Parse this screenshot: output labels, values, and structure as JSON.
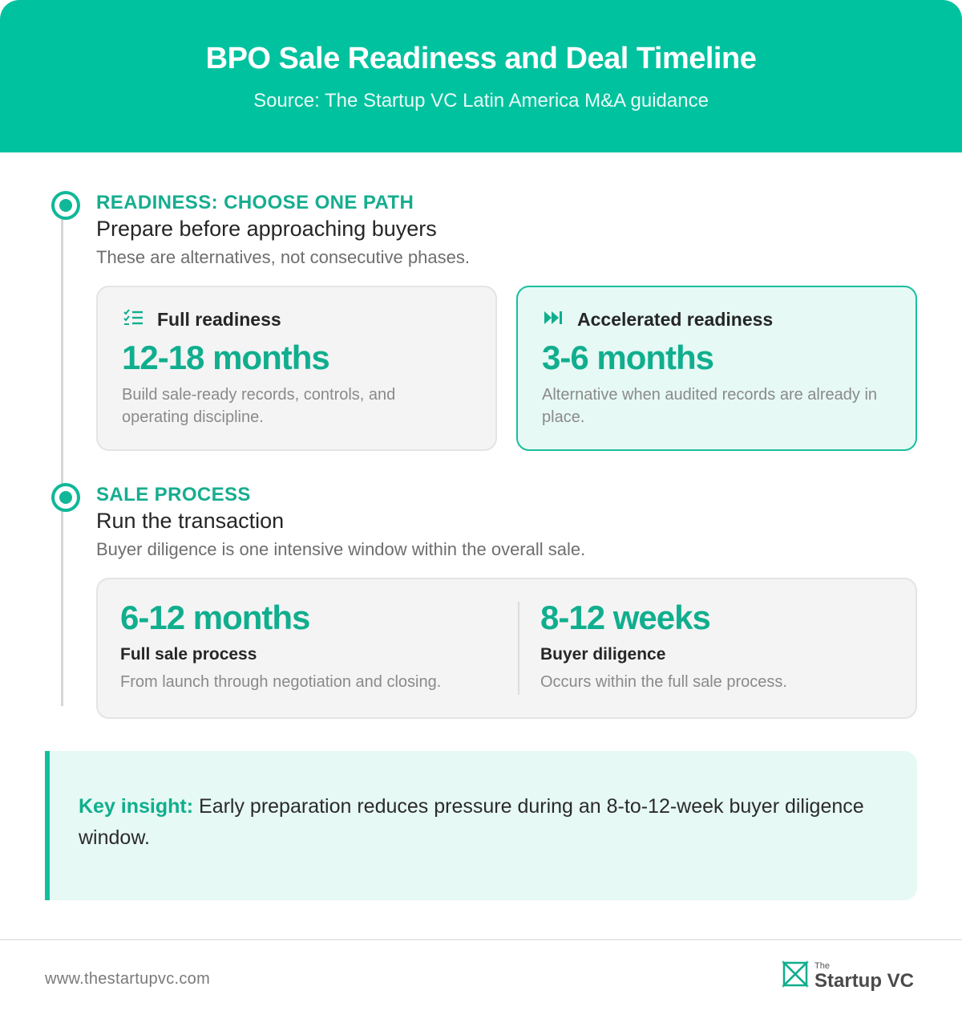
{
  "header": {
    "title": "BPO Sale Readiness and Deal Timeline",
    "source": "Source: The Startup VC Latin America M&A guidance"
  },
  "readiness": {
    "label": "READINESS: CHOOSE ONE PATH",
    "title": "Prepare before approaching buyers",
    "description": "These are alternatives, not consecutive phases.",
    "cards": [
      {
        "icon": "checklist-icon",
        "name": "Full readiness",
        "duration": "12-18 months",
        "description": "Build sale-ready records, controls, and operating discipline."
      },
      {
        "icon": "fast-forward-icon",
        "name": "Accelerated readiness",
        "duration": "3-6 months",
        "description": "Alternative when audited records are already in place."
      }
    ]
  },
  "sale_process": {
    "label": "SALE PROCESS",
    "title": "Run the transaction",
    "description": "Buyer diligence is one intensive window within the overall sale.",
    "items": [
      {
        "duration": "6-12 months",
        "name": "Full sale process",
        "description": "From launch through negotiation and closing."
      },
      {
        "duration": "8-12 weeks",
        "name": "Buyer diligence",
        "description": "Occurs within the full sale process."
      }
    ]
  },
  "insight": {
    "key": "Key insight:",
    "text": " Early preparation reduces pressure during an 8-to-12-week buyer diligence window."
  },
  "footer": {
    "url": "www.thestartupvc.com",
    "logo_small": "The",
    "logo_name": "Startup VC"
  },
  "colors": {
    "header_bg": "#00c29f",
    "accent": "#10ae8e",
    "accent_bg": "#e6f9f4"
  }
}
